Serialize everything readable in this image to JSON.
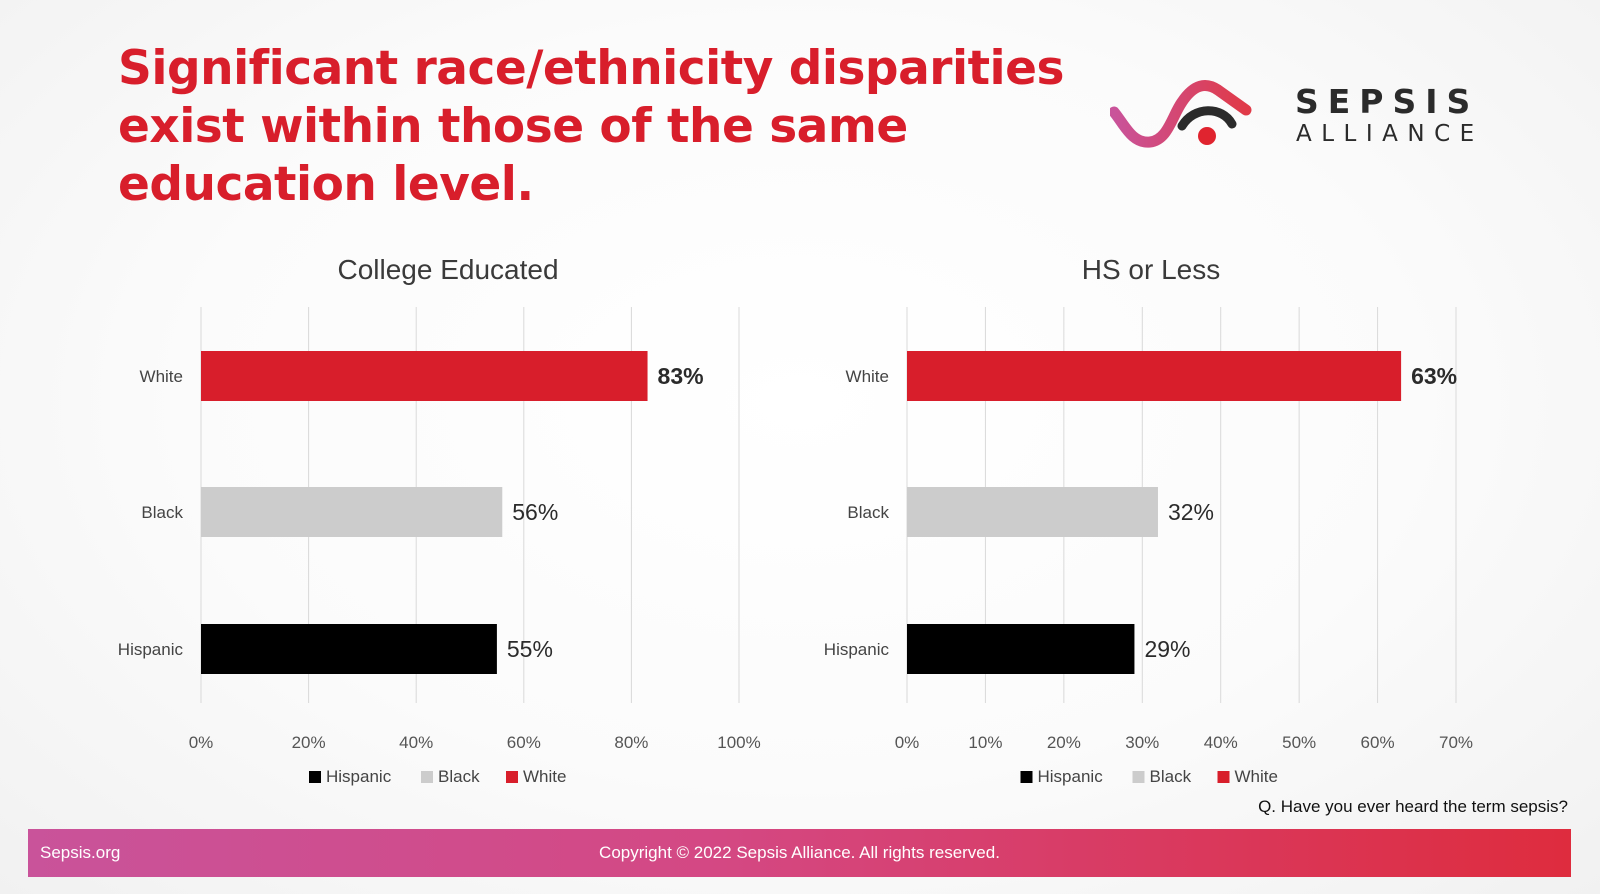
{
  "slide": {
    "title": "Significant race/ethnicity disparities exist within those of the same education level.",
    "question": "Q. Have you ever heard the term sepsis?"
  },
  "logo": {
    "word1": "SEPSIS",
    "word2": "ALLIANCE"
  },
  "footer": {
    "site": "Sepsis.org",
    "copyright": "Copyright © 2022 Sepsis Alliance. All rights reserved."
  },
  "colors": {
    "white": "#d81e2b",
    "black_group": "#cccccc",
    "hispanic": "#000000",
    "title": "#d81e2b"
  },
  "chart_data": [
    {
      "type": "bar",
      "orientation": "horizontal",
      "title": "College Educated",
      "categories": [
        "White",
        "Black",
        "Hispanic"
      ],
      "values": [
        83,
        56,
        55
      ],
      "data_labels": [
        "83%",
        "56%",
        "55%"
      ],
      "xlim": [
        0,
        100
      ],
      "ticks": [
        "0%",
        "20%",
        "40%",
        "60%",
        "80%",
        "100%"
      ],
      "legend": [
        "Hispanic",
        "Black",
        "White"
      ],
      "legend_position": "bottom",
      "grid": true
    },
    {
      "type": "bar",
      "orientation": "horizontal",
      "title": "HS or Less",
      "categories": [
        "White",
        "Black",
        "Hispanic"
      ],
      "values": [
        63,
        32,
        29
      ],
      "data_labels": [
        "63%",
        "32%",
        "29%"
      ],
      "xlim": [
        0,
        70
      ],
      "ticks": [
        "0%",
        "10%",
        "20%",
        "30%",
        "40%",
        "50%",
        "60%",
        "70%"
      ],
      "legend": [
        "Hispanic",
        "Black",
        "White"
      ],
      "legend_position": "bottom",
      "grid": true
    }
  ]
}
